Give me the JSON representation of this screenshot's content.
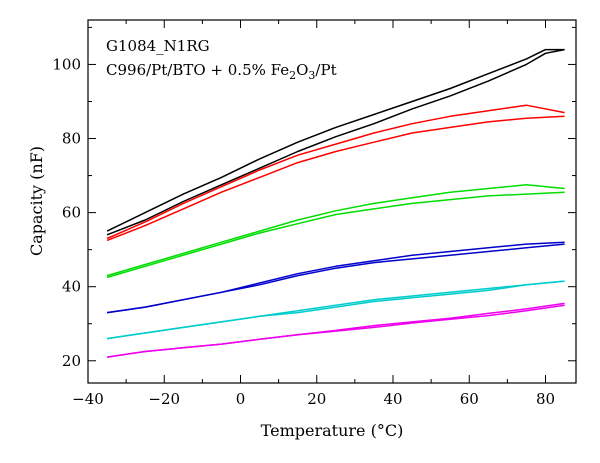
{
  "chart_data": {
    "type": "line",
    "xlabel": "Temperature (°C)",
    "ylabel": "Capacity (nF)",
    "xlim": [
      -40,
      88
    ],
    "ylim": [
      14,
      112
    ],
    "xticks": [
      -40,
      -20,
      0,
      20,
      40,
      60,
      80
    ],
    "yticks": [
      20,
      40,
      60,
      80,
      100
    ],
    "xtick_labels": [
      "−40",
      "−20",
      "0",
      "20",
      "40",
      "60",
      "80"
    ],
    "ytick_labels": [
      "20",
      "40",
      "60",
      "80",
      "100"
    ],
    "grid": false,
    "annotations": {
      "line1": "G1084_N1RG",
      "line2_prefix": "C996/Pt/BTO + 0.5% Fe",
      "line2_sub1": "2",
      "line2_mid": "O",
      "line2_sub2": "3",
      "line2_suffix": "/Pt"
    },
    "series": [
      {
        "color": "#000000",
        "x": [
          -35,
          -25,
          -15,
          -5,
          5,
          15,
          25,
          35,
          45,
          55,
          65,
          75,
          80,
          85
        ],
        "y": [
          55,
          60,
          65,
          69.5,
          74.5,
          79,
          83,
          86.5,
          90,
          93.5,
          97.5,
          101.5,
          104,
          104
        ]
      },
      {
        "color": "#000000",
        "x": [
          -35,
          -25,
          -15,
          -5,
          5,
          15,
          25,
          35,
          45,
          55,
          65,
          75,
          80,
          85
        ],
        "y": [
          54,
          58,
          63,
          67.5,
          72,
          76.5,
          80.5,
          84,
          88,
          91.5,
          95.5,
          100,
          103,
          104
        ]
      },
      {
        "color": "#ff0000",
        "x": [
          -35,
          -25,
          -15,
          -5,
          5,
          15,
          25,
          35,
          45,
          55,
          65,
          75,
          85
        ],
        "y": [
          53,
          57.5,
          62.5,
          67,
          71.5,
          75.5,
          78.5,
          81.5,
          84,
          86,
          87.5,
          89,
          87
        ]
      },
      {
        "color": "#ff0000",
        "x": [
          -35,
          -25,
          -15,
          -5,
          5,
          15,
          25,
          35,
          45,
          55,
          65,
          75,
          85
        ],
        "y": [
          52.5,
          56.5,
          61,
          65.5,
          69.5,
          73.5,
          76.5,
          79,
          81.5,
          83,
          84.5,
          85.5,
          86
        ]
      },
      {
        "color": "#00dd00",
        "x": [
          -35,
          -25,
          -15,
          -5,
          5,
          15,
          25,
          35,
          45,
          55,
          65,
          75,
          85
        ],
        "y": [
          43,
          46,
          49,
          52,
          55,
          58,
          60.5,
          62.5,
          64,
          65.5,
          66.5,
          67.5,
          66.5
        ]
      },
      {
        "color": "#00dd00",
        "x": [
          -35,
          -25,
          -15,
          -5,
          5,
          15,
          25,
          35,
          45,
          55,
          65,
          75,
          85
        ],
        "y": [
          42.5,
          45.5,
          48.5,
          51.5,
          54.5,
          57,
          59.5,
          61,
          62.5,
          63.5,
          64.5,
          65,
          65.5
        ]
      },
      {
        "color": "#0000cc",
        "x": [
          -35,
          -25,
          -15,
          -5,
          5,
          15,
          25,
          35,
          45,
          55,
          65,
          75,
          85
        ],
        "y": [
          33,
          34.5,
          36.5,
          38.5,
          41,
          43.5,
          45.5,
          47,
          48.5,
          49.5,
          50.5,
          51.5,
          52
        ]
      },
      {
        "color": "#0000cc",
        "x": [
          -35,
          -25,
          -15,
          -5,
          5,
          15,
          25,
          35,
          45,
          55,
          65,
          75,
          85
        ],
        "y": [
          33,
          34.5,
          36.5,
          38.5,
          40.5,
          43,
          45,
          46.5,
          47.5,
          48.5,
          49.5,
          50.5,
          51.5
        ]
      },
      {
        "color": "#00cccc",
        "x": [
          -35,
          -25,
          -15,
          -5,
          5,
          15,
          25,
          35,
          45,
          55,
          65,
          75,
          85
        ],
        "y": [
          26,
          27.5,
          29,
          30.5,
          32,
          33.5,
          35,
          36.5,
          37.5,
          38.5,
          39.5,
          40.5,
          41.5
        ]
      },
      {
        "color": "#00cccc",
        "x": [
          -35,
          -25,
          -15,
          -5,
          5,
          15,
          25,
          35,
          45,
          55,
          65,
          75,
          85
        ],
        "y": [
          26,
          27.5,
          29,
          30.5,
          32,
          33,
          34.5,
          36,
          37,
          38,
          39,
          40.5,
          41.5
        ]
      },
      {
        "color": "#ee00ee",
        "x": [
          -35,
          -25,
          -15,
          -5,
          5,
          15,
          25,
          35,
          45,
          55,
          65,
          75,
          85
        ],
        "y": [
          21,
          22.5,
          23.5,
          24.5,
          25.8,
          27,
          28.2,
          29.5,
          30.5,
          31.5,
          32.8,
          34,
          35.5
        ]
      },
      {
        "color": "#ee00ee",
        "x": [
          -35,
          -25,
          -15,
          -5,
          5,
          15,
          25,
          35,
          45,
          55,
          65,
          75,
          85
        ],
        "y": [
          21,
          22.5,
          23.5,
          24.5,
          25.8,
          27,
          28,
          29,
          30.2,
          31.2,
          32.2,
          33.5,
          35
        ]
      }
    ]
  }
}
